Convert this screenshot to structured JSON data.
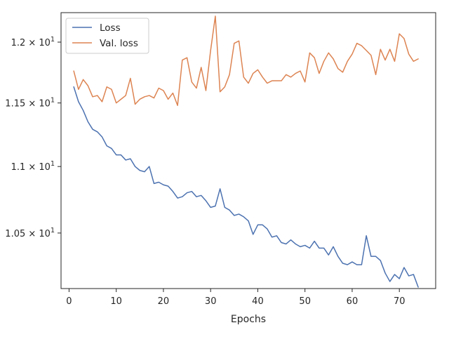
{
  "chart_data": {
    "type": "line",
    "title": "",
    "xlabel": "Epochs",
    "ylabel": "",
    "yscale": "log",
    "xlim": [
      -1.7,
      77.7
    ],
    "ylim": [
      10.1,
      12.25
    ],
    "grid": false,
    "legend_position": "top-left",
    "x_ticks": [
      0,
      10,
      20,
      30,
      40,
      50,
      60,
      70
    ],
    "x_tick_labels": [
      "0",
      "10",
      "20",
      "30",
      "40",
      "50",
      "60",
      "70"
    ],
    "y_ticks": [
      10.5,
      11,
      11.5,
      12
    ],
    "y_tick_labels": [
      {
        "mantissa": "1.05",
        "base": "10",
        "exp": "1"
      },
      {
        "mantissa": "1.1",
        "base": "10",
        "exp": "1"
      },
      {
        "mantissa": "1.15",
        "base": "10",
        "exp": "1"
      },
      {
        "mantissa": "1.2",
        "base": "10",
        "exp": "1"
      }
    ],
    "series": [
      {
        "name": "Loss",
        "color": "#4c72b0",
        "x": [
          1,
          2,
          3,
          4,
          5,
          6,
          7,
          8,
          9,
          10,
          11,
          12,
          13,
          14,
          15,
          16,
          17,
          18,
          19,
          20,
          21,
          22,
          23,
          24,
          25,
          26,
          27,
          28,
          29,
          30,
          31,
          32,
          33,
          34,
          35,
          36,
          37,
          38,
          39,
          40,
          41,
          42,
          43,
          44,
          45,
          46,
          47,
          48,
          49,
          50,
          51,
          52,
          53,
          54,
          55,
          56,
          57,
          58,
          59,
          60,
          61,
          62,
          63,
          64,
          65,
          66,
          67,
          68,
          69,
          70,
          71,
          72,
          73,
          74
        ],
        "values": [
          11.63,
          11.51,
          11.44,
          11.35,
          11.29,
          11.27,
          11.23,
          11.16,
          11.14,
          11.09,
          11.09,
          11.05,
          11.06,
          11.0,
          10.97,
          10.96,
          11.0,
          10.87,
          10.88,
          10.86,
          10.85,
          10.81,
          10.76,
          10.77,
          10.8,
          10.81,
          10.77,
          10.78,
          10.74,
          10.69,
          10.7,
          10.83,
          10.69,
          10.67,
          10.63,
          10.64,
          10.62,
          10.59,
          10.49,
          10.56,
          10.56,
          10.53,
          10.47,
          10.48,
          10.43,
          10.42,
          10.45,
          10.42,
          10.4,
          10.41,
          10.39,
          10.44,
          10.39,
          10.39,
          10.34,
          10.4,
          10.33,
          10.28,
          10.27,
          10.29,
          10.27,
          10.27,
          10.48,
          10.33,
          10.33,
          10.3,
          10.21,
          10.15,
          10.2,
          10.17,
          10.25,
          10.19,
          10.2,
          10.11
        ]
      },
      {
        "name": "Val. loss",
        "color": "#dd8452",
        "x": [
          1,
          2,
          3,
          4,
          5,
          6,
          7,
          8,
          9,
          10,
          11,
          12,
          13,
          14,
          15,
          16,
          17,
          18,
          19,
          20,
          21,
          22,
          23,
          24,
          25,
          26,
          27,
          28,
          29,
          30,
          31,
          32,
          33,
          34,
          35,
          36,
          37,
          38,
          39,
          40,
          41,
          42,
          43,
          44,
          45,
          46,
          47,
          48,
          49,
          50,
          51,
          52,
          53,
          54,
          55,
          56,
          57,
          58,
          59,
          60,
          61,
          62,
          63,
          64,
          65,
          66,
          67,
          68,
          69,
          70,
          71,
          72,
          73,
          74
        ],
        "values": [
          11.76,
          11.61,
          11.69,
          11.64,
          11.55,
          11.56,
          11.51,
          11.63,
          11.61,
          11.5,
          11.53,
          11.56,
          11.7,
          11.49,
          11.53,
          11.55,
          11.56,
          11.54,
          11.62,
          11.6,
          11.53,
          11.58,
          11.48,
          11.85,
          11.87,
          11.67,
          11.62,
          11.79,
          11.6,
          11.93,
          12.22,
          11.59,
          11.63,
          11.73,
          11.99,
          12.01,
          11.71,
          11.66,
          11.74,
          11.77,
          11.71,
          11.66,
          11.68,
          11.68,
          11.68,
          11.73,
          11.71,
          11.74,
          11.76,
          11.67,
          11.91,
          11.87,
          11.74,
          11.84,
          11.91,
          11.86,
          11.78,
          11.75,
          11.84,
          11.9,
          11.99,
          11.97,
          11.93,
          11.89,
          11.73,
          11.94,
          11.85,
          11.94,
          11.84,
          12.07,
          12.03,
          11.9,
          11.84,
          11.86
        ]
      }
    ]
  }
}
